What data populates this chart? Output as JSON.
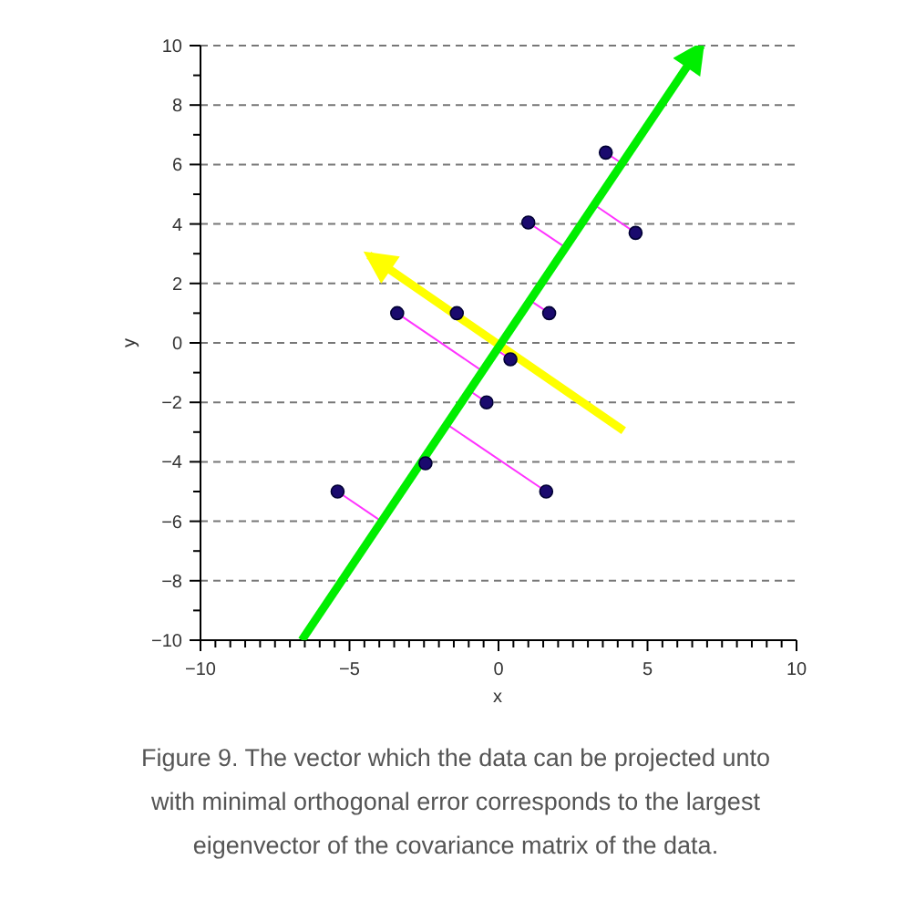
{
  "chart_data": {
    "type": "scatter",
    "xlabel": "x",
    "ylabel": "y",
    "annotations": [
      "Figure 9. The vector which the data can be projected unto with minimal orthogonal error corresponds to the largest eigenvector of the covariance matrix of the data."
    ],
    "xlim": [
      -10,
      10
    ],
    "ylim": [
      -10,
      10
    ],
    "xticks": [
      -10,
      {
        "value": -9.5,
        "label": null
      },
      {
        "value": -9,
        "label": null
      },
      {
        "value": -8.5,
        "label": null
      },
      {
        "value": -8,
        "label": null
      },
      {
        "value": -7.5,
        "label": null
      },
      {
        "value": -7,
        "label": null
      },
      {
        "value": -6.5,
        "label": null
      },
      {
        "value": -6,
        "label": null
      },
      {
        "value": -5.5,
        "label": null
      },
      -5,
      {
        "value": -4.5,
        "label": null
      },
      {
        "value": -4,
        "label": null
      },
      {
        "value": -3.5,
        "label": null
      },
      {
        "value": -3,
        "label": null
      },
      {
        "value": -2.5,
        "label": null
      },
      {
        "value": -2,
        "label": null
      },
      {
        "value": -1.5,
        "label": null
      },
      {
        "value": -1,
        "label": null
      },
      {
        "value": -0.5,
        "label": null
      },
      0,
      {
        "value": 0.5,
        "label": null
      },
      {
        "value": 1,
        "label": null
      },
      {
        "value": 1.5,
        "label": null
      },
      {
        "value": 2,
        "label": null
      },
      {
        "value": 2.5,
        "label": null
      },
      {
        "value": 3,
        "label": null
      },
      {
        "value": 3.5,
        "label": null
      },
      {
        "value": 4,
        "label": null
      },
      {
        "value": 4.5,
        "label": null
      },
      5,
      {
        "value": 5.5,
        "label": null
      },
      {
        "value": 6,
        "label": null
      },
      {
        "value": 6.5,
        "label": null
      },
      {
        "value": 7,
        "label": null
      },
      {
        "value": 7.5,
        "label": null
      },
      {
        "value": 8,
        "label": null
      },
      {
        "value": 8.5,
        "label": null
      },
      {
        "value": 9,
        "label": null
      },
      {
        "value": 9.5,
        "label": null
      },
      10
    ],
    "yticks": [
      -10,
      {
        "value": -9,
        "label": null
      },
      -8,
      {
        "value": -7,
        "label": null
      },
      -6,
      {
        "value": -5,
        "label": null
      },
      -4,
      {
        "value": -3,
        "label": null
      },
      -2,
      {
        "value": -1,
        "label": null
      },
      0,
      {
        "value": 1,
        "label": null
      },
      2,
      {
        "value": 3,
        "label": null
      },
      4,
      {
        "value": 5,
        "label": null
      },
      6,
      {
        "value": 7,
        "label": null
      },
      8,
      {
        "value": 9,
        "label": null
      },
      10
    ],
    "grid": "y",
    "series": [
      {
        "type": "line",
        "color": "#ff33ff",
        "x": [
          3.6,
          4.12,
          null,
          4.6,
          3.18,
          null,
          1.0,
          2.2,
          null,
          1.7,
          1.0,
          null,
          -3.4,
          -0.61,
          null,
          0.4,
          -0.13,
          null,
          -0.4,
          -1.06,
          null,
          1.6,
          -1.82,
          null,
          -5.4,
          -4.03
        ],
        "values": [
          6.4,
          6.05,
          null,
          3.7,
          4.67,
          null,
          4.05,
          3.24,
          null,
          1.0,
          1.47,
          null,
          1.0,
          -0.9,
          null,
          -0.55,
          -0.19,
          null,
          -2.0,
          -1.55,
          null,
          -5.0,
          -2.68,
          null,
          -5.0,
          -5.93
        ]
      },
      {
        "type": "line",
        "color": "#ffff00",
        "x": [
          4.2,
          -4.35
        ],
        "values": [
          -2.95,
          2.95
        ]
      },
      {
        "type": "line",
        "color": "#00ee00",
        "x": [
          -6.6,
          6.8
        ],
        "values": [
          -10,
          10
        ]
      },
      {
        "color": "#1a0a6e",
        "marker": "circle",
        "x": [
          3.6,
          4.6,
          1.0,
          1.7,
          -3.4,
          -1.4,
          0.4,
          -0.4,
          -2.45,
          1.6,
          -5.4
        ],
        "values": [
          6.4,
          3.7,
          4.05,
          1.0,
          1.0,
          1.0,
          -0.55,
          -2.0,
          -4.05,
          -5.0,
          -5.0
        ]
      }
    ]
  }
}
